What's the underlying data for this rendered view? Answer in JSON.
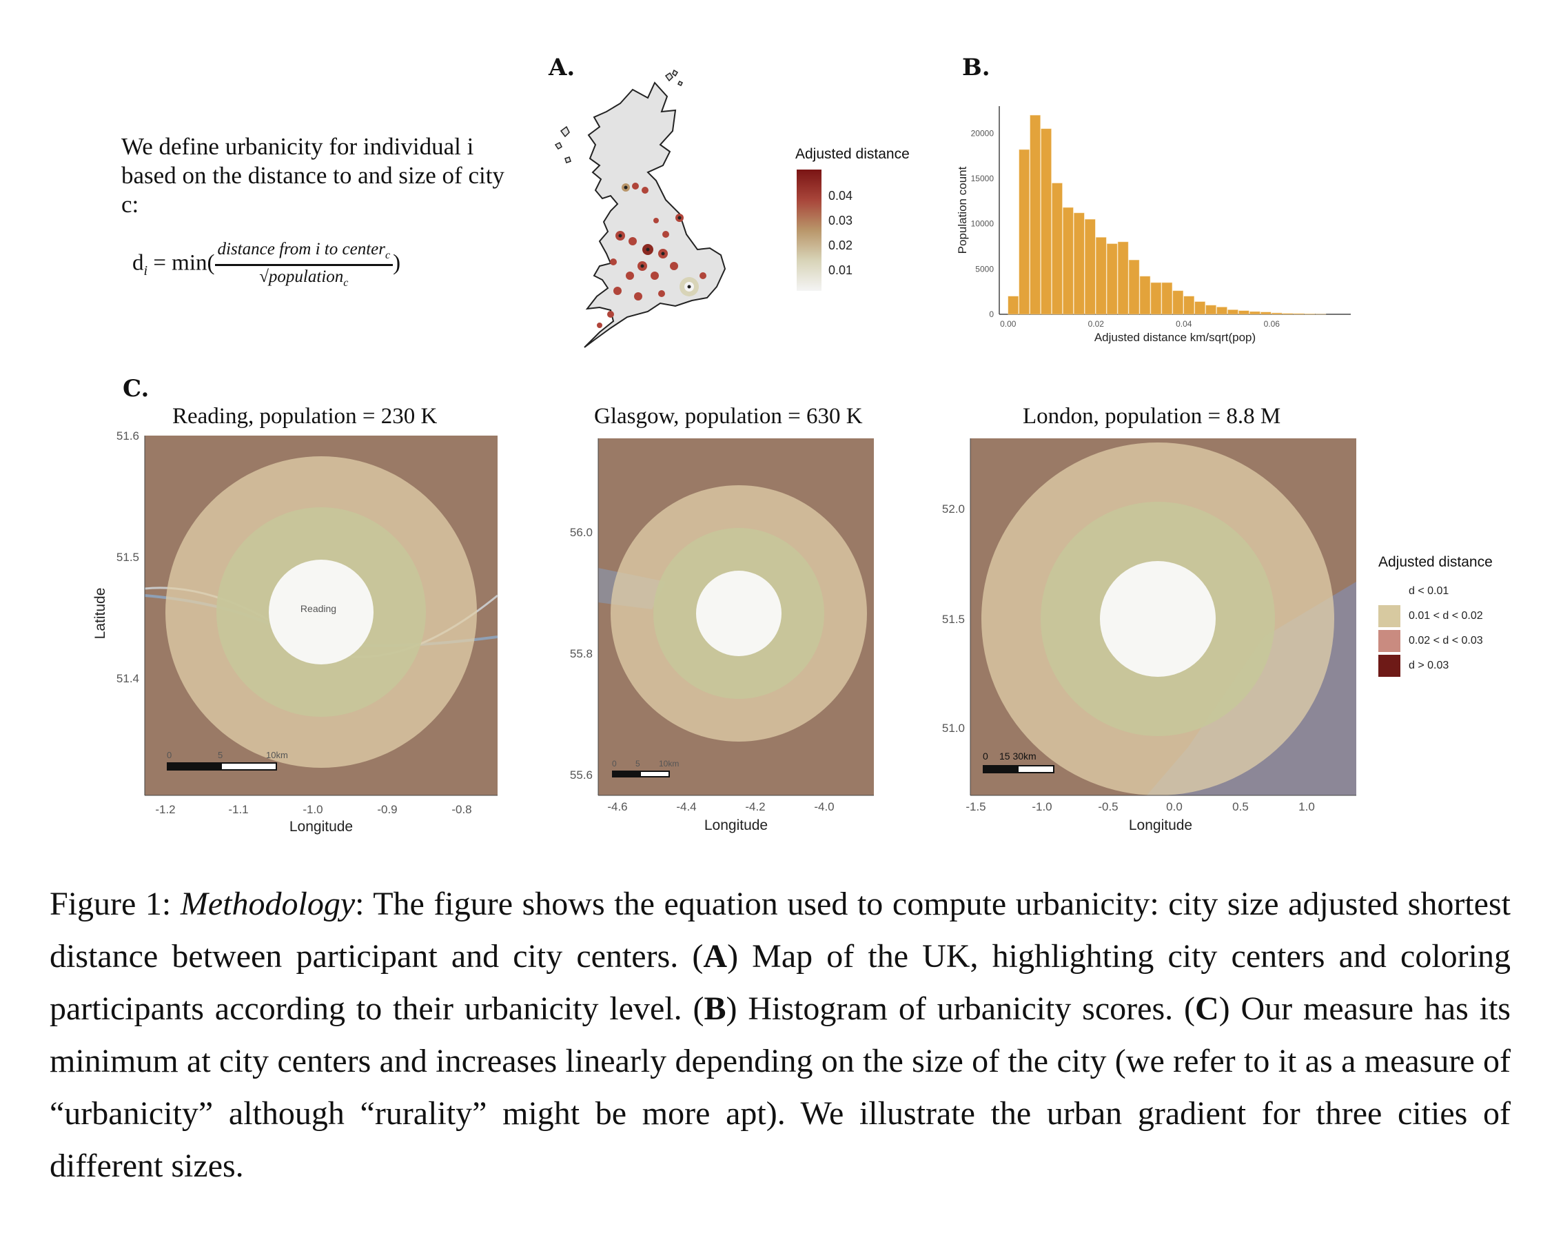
{
  "definition": {
    "text": "We define urbanicity for individual i based on the distance to and size of city c:",
    "eq_lhs": "d",
    "eq_lhs_sub": "i",
    "eq_mid": " = min(",
    "eq_numerator": "distance from i to center",
    "eq_numerator_sub": "c",
    "eq_denominator": "√population",
    "eq_denominator_sub": "c",
    "eq_close": ")"
  },
  "panel_a": {
    "letter": "A.",
    "legend_title": "Adjusted distance",
    "legend_ticks": [
      "0.04",
      "0.03",
      "0.02",
      "0.01"
    ],
    "gradient_colors": [
      "#7a1414",
      "#a8453a",
      "#b9966a",
      "#d8d4b8",
      "#f4f4f4"
    ]
  },
  "panel_b": {
    "letter": "B."
  },
  "panel_c": {
    "letter": "C.",
    "legend_title": "Adjusted distance",
    "legend_items": [
      {
        "label": "d < 0.01",
        "color": "#ffffff"
      },
      {
        "label": "0.01 < d < 0.02",
        "color": "#d7c9a0"
      },
      {
        "label": "0.02 < d < 0.03",
        "color": "#c98b80"
      },
      {
        "label": "d > 0.03",
        "color": "#6e1a17"
      }
    ],
    "maps": [
      {
        "title": "Reading, population = 230 K",
        "xticks": [
          "-1.2",
          "-1.1",
          "-1.0",
          "-0.9",
          "-0.8"
        ],
        "yticks": [
          "51.6",
          "51.5",
          "51.4"
        ],
        "xlabel": "Longitude",
        "ylabel": "Latitude",
        "center_label": "Reading",
        "scale": [
          "0",
          "5",
          "10km"
        ]
      },
      {
        "title": "Glasgow, population = 630 K",
        "xticks": [
          "-4.6",
          "-4.4",
          "-4.2",
          "-4.0"
        ],
        "yticks": [
          "56.0",
          "55.8",
          "55.6"
        ],
        "xlabel": "Longitude",
        "scale": [
          "0",
          "5",
          "10km"
        ]
      },
      {
        "title": "London, population = 8.8 M",
        "xticks": [
          "-1.5",
          "-1.0",
          "-0.5",
          "0.0",
          "0.5",
          "1.0"
        ],
        "yticks": [
          "52.0",
          "51.5",
          "51.0"
        ],
        "xlabel": "Longitude",
        "scale": [
          "0",
          "15 30km"
        ]
      }
    ]
  },
  "chart_data": {
    "type": "bar",
    "title": "",
    "xlabel": "Adjusted distance km/sqrt(pop)",
    "ylabel": "Population count",
    "xticks": [
      "0.00",
      "0.02",
      "0.04",
      "0.06"
    ],
    "yticks": [
      "0",
      "5000",
      "10000",
      "15000",
      "20000"
    ],
    "xlim": [
      -0.002,
      0.078
    ],
    "ylim": [
      0,
      23000
    ],
    "bar_color": "#e3a33b",
    "bin_width": 0.0025,
    "bin_starts": [
      0.0,
      0.0025,
      0.005,
      0.0075,
      0.01,
      0.0125,
      0.015,
      0.0175,
      0.02,
      0.0225,
      0.025,
      0.0275,
      0.03,
      0.0325,
      0.035,
      0.0375,
      0.04,
      0.0425,
      0.045,
      0.0475,
      0.05,
      0.0525,
      0.055,
      0.0575,
      0.06,
      0.0625,
      0.065,
      0.0675,
      0.07
    ],
    "values": [
      2000,
      18200,
      22000,
      20500,
      14500,
      11800,
      11200,
      10500,
      8500,
      7800,
      8000,
      6000,
      4200,
      3500,
      3500,
      2600,
      2000,
      1400,
      1000,
      800,
      500,
      400,
      300,
      250,
      150,
      100,
      80,
      50,
      30
    ]
  },
  "caption": {
    "figure_label": "Figure 1: ",
    "figure_italic": "Methodology",
    "p1": ": The figure shows the equation used to compute urbanicity: city size adjusted shortest distance between participant and city centers. (",
    "a_bold": "A",
    "p2": ") Map of the UK, highlighting city centers and coloring participants according to their urbanicity level. (",
    "b_bold": "B",
    "p3": ") Histogram of urbanicity scores. (",
    "c_bold": "C",
    "p4": ") Our measure has its minimum at city centers and increases linearly depending on the size of the city (we refer to it as a measure of “urbanicity” although “rurality” might be more apt). We illustrate the urban gradient for three cities of different sizes."
  }
}
